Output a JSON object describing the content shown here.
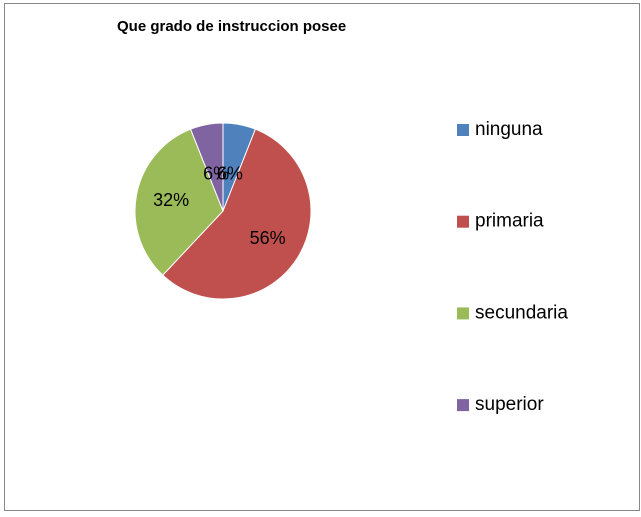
{
  "chart_data": {
    "type": "pie",
    "title": "Que grado de instruccion posee",
    "categories": [
      "ninguna",
      "primaria",
      "secundaria",
      "superior"
    ],
    "values": [
      6,
      56,
      32,
      6
    ],
    "value_labels": [
      "6%",
      "56%",
      "32%",
      "6%"
    ],
    "colors": [
      "#4f81bd",
      "#c0504d",
      "#9bbb59",
      "#8064a2"
    ],
    "legend": "right"
  }
}
